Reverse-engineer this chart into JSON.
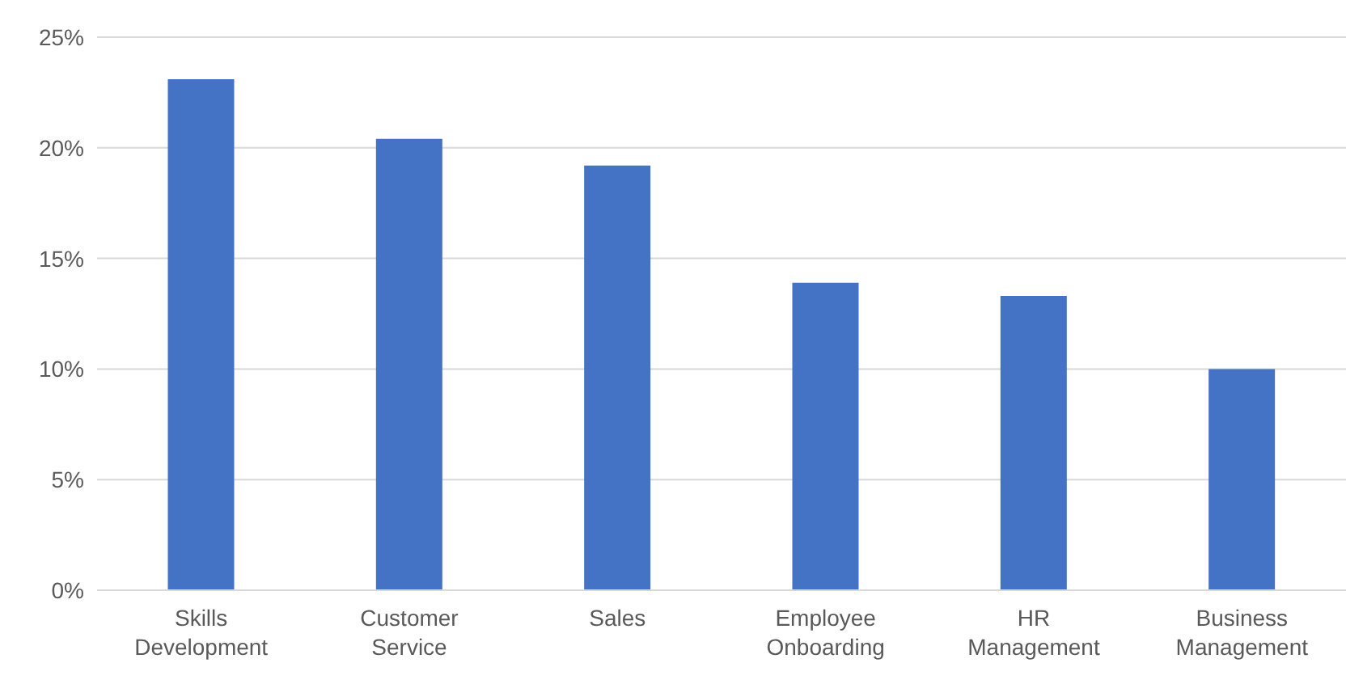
{
  "chart_data": {
    "type": "bar",
    "categories": [
      "Skills Development",
      "Customer Service",
      "Sales",
      "Employee Onboarding",
      "HR Management",
      "Business Management"
    ],
    "values": [
      23.1,
      20.4,
      19.2,
      13.9,
      13.3,
      10.0
    ],
    "color": "#4472c4",
    "ylim": [
      0,
      25
    ],
    "yticks": [
      {
        "value": 0,
        "label": "0%"
      },
      {
        "value": 5,
        "label": "5%"
      },
      {
        "value": 10,
        "label": "10%"
      },
      {
        "value": 15,
        "label": "15%"
      },
      {
        "value": 20,
        "label": "20%"
      },
      {
        "value": 25,
        "label": "25%"
      }
    ],
    "grid": "y",
    "legend": false
  }
}
